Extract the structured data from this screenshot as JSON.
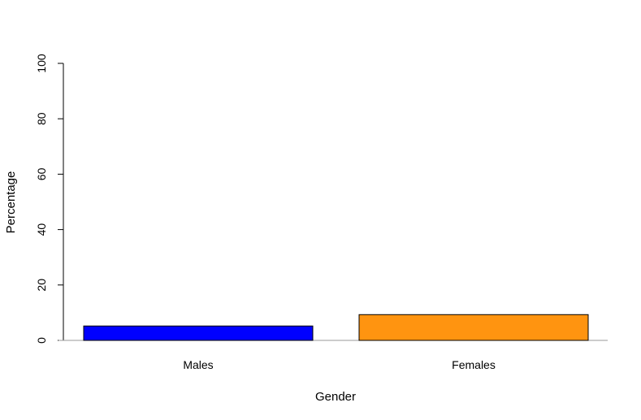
{
  "chart_data": {
    "type": "bar",
    "categories": [
      "Males",
      "Females"
    ],
    "values": [
      5.2,
      9.3
    ],
    "colors": [
      "#0000ff",
      "#ff9410"
    ],
    "xlabel": "Gender",
    "ylabel": "Percentage",
    "ylim": [
      0,
      100
    ],
    "yticks": [
      "0",
      "20",
      "40",
      "60",
      "80",
      "100"
    ],
    "grid": false,
    "legend": "none"
  }
}
